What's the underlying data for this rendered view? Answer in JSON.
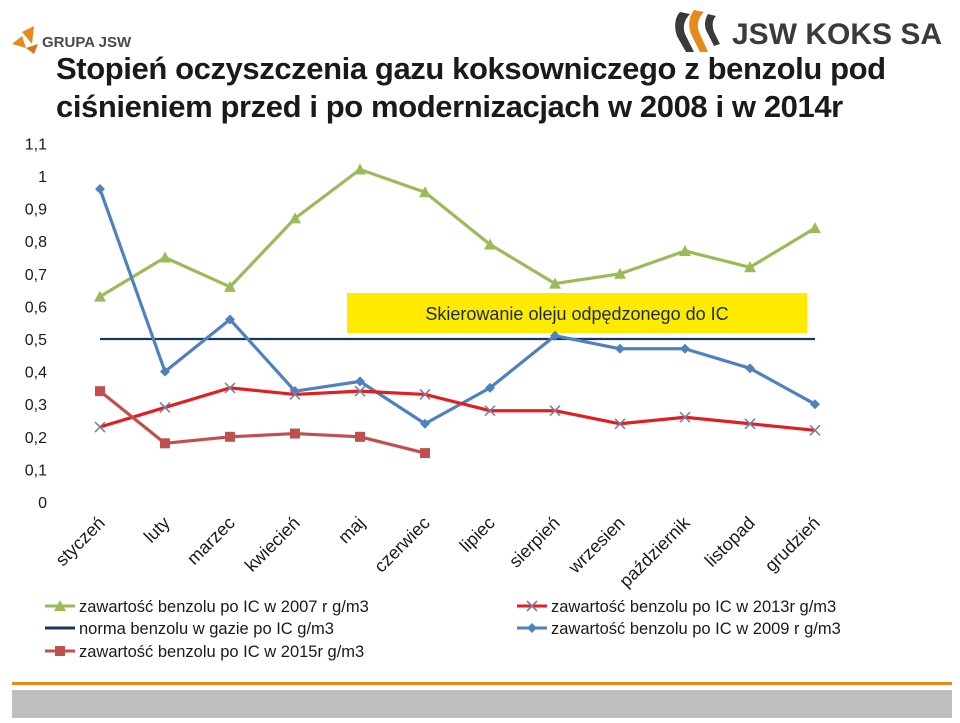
{
  "header": {
    "group_logo_text": "GRUPA JSW",
    "brand_logo_text": "JSW KOKS SA"
  },
  "colors": {
    "series_2007": "#9bbb59",
    "series_norma": "#17375e",
    "series_2015": "#c0504d",
    "series_2013": "#e02020",
    "series_2009": "#4f81bd",
    "annotation_fill": "#ffea00",
    "footer_orange": "#e58a1c",
    "footer_grey": "#bfbfbf"
  },
  "chart_data": {
    "type": "line",
    "title": "Stopień oczyszczenia gazu koksowniczego z benzolu pod ciśnieniem przed i po modernizacjach w 2008 i w 2014r",
    "categories": [
      "styczeń",
      "luty",
      "marzec",
      "kwiecień",
      "maj",
      "czerwiec",
      "lipiec",
      "sierpień",
      "wrzesien",
      "październik",
      "listopad",
      "grudzień"
    ],
    "y_ticks": [
      "0",
      "0,1",
      "0,2",
      "0,3",
      "0,4",
      "0,5",
      "0,6",
      "0,7",
      "0,8",
      "0,9",
      "1",
      "1,1"
    ],
    "ylim": [
      0,
      1.1
    ],
    "grid": false,
    "legend_position": "bottom",
    "annotation": "Skierowanie oleju odpędzonego do IC",
    "series": [
      {
        "key": "s2007",
        "name": "zawartość benzolu po IC w 2007 r g/m3",
        "marker": "triangle",
        "color": "#9bbb59",
        "values": [
          0.63,
          0.75,
          0.66,
          0.87,
          1.02,
          0.95,
          0.79,
          0.67,
          0.7,
          0.77,
          0.72,
          0.84
        ]
      },
      {
        "key": "norma",
        "name": "norma benzolu w gazie po IC g/m3",
        "marker": "none",
        "color": "#17375e",
        "values": [
          0.5,
          0.5,
          0.5,
          0.5,
          0.5,
          0.5,
          0.5,
          0.5,
          0.5,
          0.5,
          0.5,
          0.5
        ]
      },
      {
        "key": "s2015",
        "name": "zawartość benzolu po IC w 2015r g/m3",
        "marker": "square",
        "color": "#c0504d",
        "values": [
          0.34,
          0.18,
          0.2,
          0.21,
          0.2,
          0.15,
          null,
          null,
          null,
          null,
          null,
          null
        ]
      },
      {
        "key": "s2013",
        "name": "zawartość benzolu po IC w 2013r g/m3",
        "marker": "x",
        "color": "#e02020",
        "values": [
          0.23,
          0.29,
          0.35,
          0.33,
          0.34,
          0.33,
          0.28,
          0.28,
          0.24,
          0.26,
          0.24,
          0.22
        ]
      },
      {
        "key": "s2009",
        "name": "zawartość benzolu po IC w 2009 r g/m3",
        "marker": "diamond",
        "color": "#4f81bd",
        "values": [
          0.96,
          0.4,
          0.56,
          0.34,
          0.37,
          0.24,
          0.35,
          0.51,
          0.47,
          0.47,
          0.41,
          0.3
        ]
      }
    ]
  }
}
